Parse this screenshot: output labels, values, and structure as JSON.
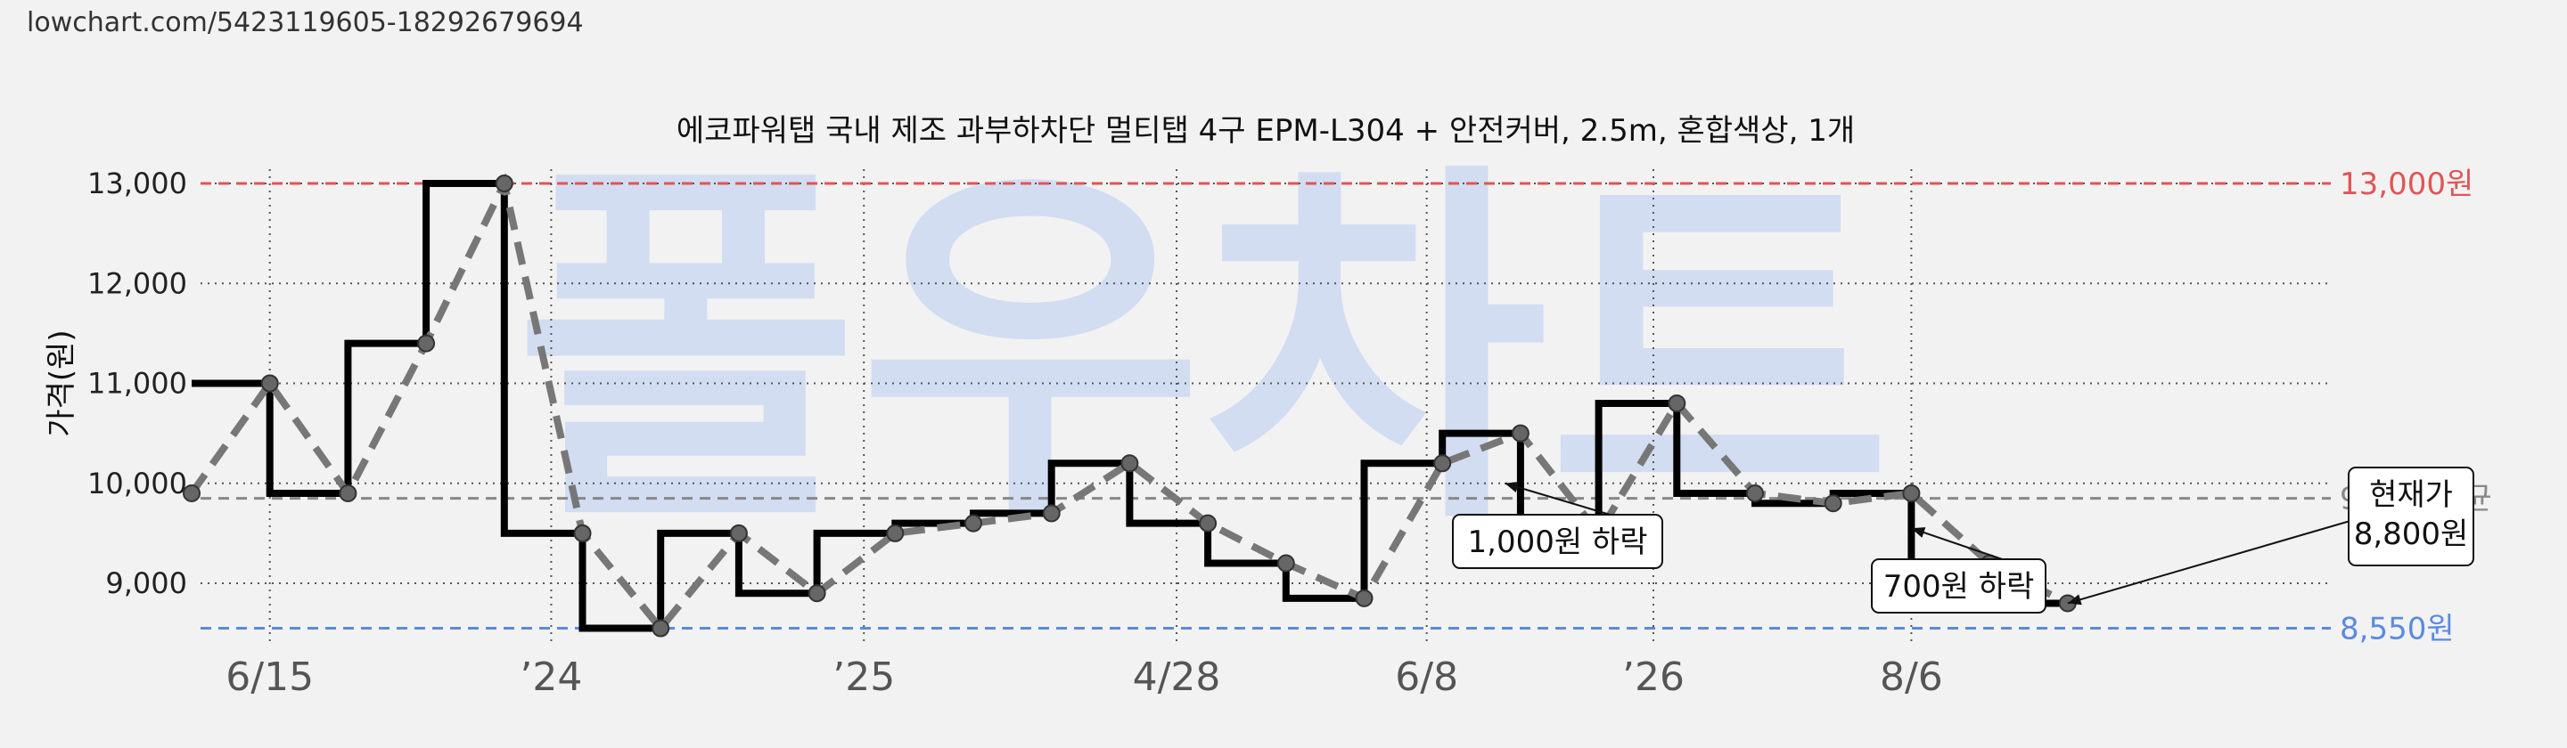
{
  "url": "lowchart.com/5423119605-18292679694",
  "watermark": "폴우차트",
  "colors": {
    "max": "#e05555",
    "min": "#5a8ae0",
    "avg": "#888888",
    "step": "#000000",
    "trend": "#777777"
  },
  "chart_data": {
    "type": "line",
    "title": "에코파워탭 국내 제조 과부하차단 멀티탭 4구 EPM-L304 + 안전커버, 2.5m, 혼합색상, 1개",
    "ylabel": "가격(원)",
    "xlabel": "",
    "ylim": [
      8400,
      13150
    ],
    "yticks": [
      9000,
      10000,
      11000,
      12000,
      13000
    ],
    "ytick_labels": [
      "9,000",
      "10,000",
      "11,000",
      "12,000",
      "13,000"
    ],
    "x_range": [
      0,
      29
    ],
    "xticks": [
      {
        "x": 2,
        "label": "6/15"
      },
      {
        "x": 5.6,
        "label": "’24"
      },
      {
        "x": 9.6,
        "label": "’25"
      },
      {
        "x": 13.6,
        "label": "4/28"
      },
      {
        "x": 16.8,
        "label": "6/8"
      },
      {
        "x": 19.7,
        "label": "’26"
      },
      {
        "x": 23,
        "label": "8/6"
      }
    ],
    "grid": true,
    "series": [
      {
        "style": "step",
        "x": [
          1,
          2,
          3,
          4,
          5,
          6,
          7,
          8,
          9,
          10,
          11,
          12,
          13,
          14,
          15,
          16,
          17,
          18,
          19,
          20,
          21,
          22,
          23,
          24,
          25
        ],
        "values": [
          11000,
          9900,
          11400,
          13000,
          9500,
          8550,
          9500,
          8900,
          9500,
          9600,
          9700,
          10200,
          9600,
          9200,
          8850,
          10200,
          10500,
          9500,
          10800,
          9900,
          9800,
          9900,
          9200,
          8800,
          8800
        ]
      },
      {
        "style": "trend",
        "x": [
          1,
          2,
          3,
          4,
          5,
          6,
          7,
          8,
          9,
          10,
          11,
          12,
          13,
          14,
          15,
          16,
          17,
          18,
          19,
          20,
          21,
          22,
          23,
          24,
          25
        ],
        "values": [
          9900,
          11000,
          9900,
          11400,
          13000,
          9500,
          8550,
          9500,
          8900,
          9500,
          9600,
          9700,
          10200,
          9600,
          9200,
          8850,
          10200,
          10500,
          9500,
          10800,
          9900,
          9800,
          9900,
          9200,
          8800
        ]
      }
    ],
    "reference_lines": [
      {
        "kind": "max",
        "value": 13000,
        "label": "13,000원"
      },
      {
        "kind": "avg",
        "value": 9850,
        "label": "9,850 평균"
      },
      {
        "kind": "min",
        "value": 8550,
        "label": "8,550원"
      }
    ],
    "annotations": [
      {
        "text": "1,000원 하락",
        "point_x": 17.8,
        "point_y": 10000
      },
      {
        "text": "700원 하락",
        "point_x": 23,
        "point_y": 9550
      },
      {
        "text": "현재가\n8,800원",
        "point_x": 25,
        "point_y": 8800
      }
    ]
  }
}
